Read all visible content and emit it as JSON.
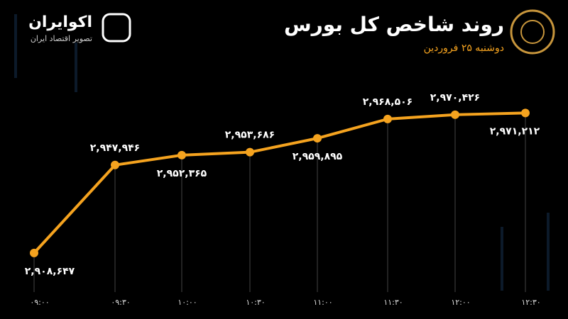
{
  "header": {
    "title": "روند شاخص کل بورس",
    "subtitle": "دوشنبه ۲۵ فروردین",
    "brand": "اکوایران",
    "brand_tagline": "تصویر اقتصاد ایران"
  },
  "chart_data": {
    "type": "line",
    "categories": [
      "۰۹:۰۰",
      "۰۹:۳۰",
      "۱۰:۰۰",
      "۱۰:۳۰",
      "۱۱:۰۰",
      "۱۱:۳۰",
      "۱۲:۰۰",
      "۱۲:۳۰"
    ],
    "series": [
      {
        "color": "#f5a31f",
        "values": [
          2908647,
          2947946,
          2952365,
          2953686,
          2959895,
          2968506,
          2970426,
          2971212
        ],
        "value_labels": [
          "۲,۹۰۸,۶۴۷",
          "۲,۹۴۷,۹۴۶",
          "۲,۹۵۲,۳۶۵",
          "۲,۹۵۳,۶۸۶",
          "۲,۹۵۹,۸۹۵",
          "۲,۹۶۸,۵۰۶",
          "۲,۹۷۰,۴۲۶",
          "۲,۹۷۱,۲۱۲"
        ]
      }
    ],
    "ylim": [
      2895000,
      2990000
    ]
  }
}
